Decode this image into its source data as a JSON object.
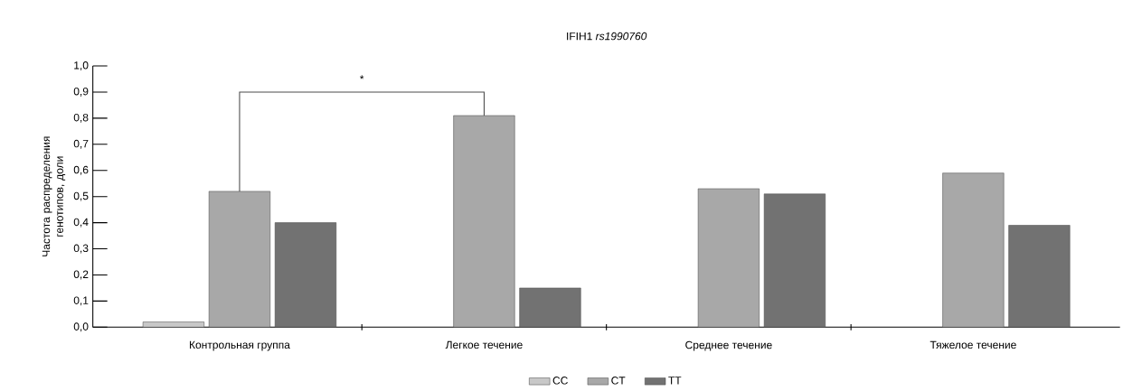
{
  "chart_data": {
    "type": "bar",
    "title": "IFIH1 *rs1990760*",
    "ylabel": "Частота распределения генотипов, доли",
    "categories": [
      "Контрольная группа",
      "Легкое течение",
      "Среднее течение",
      "Тяжелое течение"
    ],
    "series": [
      {
        "name": "CC",
        "color": "#c8c8c8",
        "values": [
          0.02,
          null,
          null,
          null
        ]
      },
      {
        "name": "CT",
        "color": "#a8a8a8",
        "values": [
          0.52,
          0.81,
          0.53,
          0.59
        ]
      },
      {
        "name": "TT",
        "color": "#727272",
        "values": [
          0.4,
          0.15,
          0.51,
          0.39
        ]
      }
    ],
    "ylim": [
      0,
      1
    ],
    "yticks": [
      {
        "value": 0,
        "label": "0,0"
      },
      {
        "value": 0.1,
        "label": "0,1"
      },
      {
        "value": 0.2,
        "label": "0,2"
      },
      {
        "value": 0.3,
        "label": "0,3"
      },
      {
        "value": 0.4,
        "label": "0,4"
      },
      {
        "value": 0.5,
        "label": "0,5"
      },
      {
        "value": 0.6,
        "label": "0,6"
      },
      {
        "value": 0.7,
        "label": "0,7"
      },
      {
        "value": 0.8,
        "label": "0,8"
      },
      {
        "value": 0.9,
        "label": "0,9"
      },
      {
        "value": 1,
        "label": "1,0"
      }
    ],
    "annotations": [
      "*"
    ],
    "legend": "bottom"
  }
}
